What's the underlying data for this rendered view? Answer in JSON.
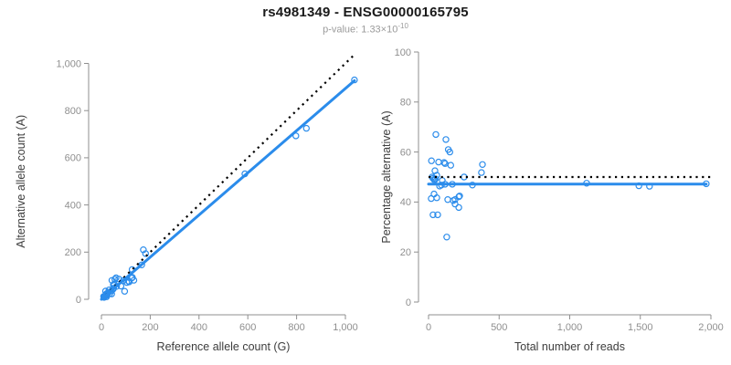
{
  "header": {
    "title": "rs4981349 - ENSG00000165795",
    "subtitle_base": "p-value: 1.33×10",
    "subtitle_exponent": "-10"
  },
  "colors": {
    "accent": "#2b8ceb",
    "identity": "#000000",
    "axis": "#8f8f8f",
    "tick_label": "#8f8f8f",
    "axis_title": "#3d3d3d",
    "title": "#1a1a1a",
    "subtitle": "#9b9b9b"
  },
  "chart_data": [
    {
      "type": "scatter",
      "title": "",
      "xlabel": "Reference allele count (G)",
      "ylabel": "Alternative allele count (A)",
      "xlim": [
        0,
        1000
      ],
      "ylim": [
        0,
        1000
      ],
      "grid": false,
      "legend": null,
      "xticks": {
        "values": [
          0,
          200,
          400,
          600,
          800,
          1000
        ],
        "labels": [
          "0",
          "200",
          "400",
          "600",
          "800",
          "1,000"
        ]
      },
      "yticks": {
        "values": [
          0,
          200,
          400,
          600,
          800,
          1000
        ],
        "labels": [
          "0",
          "200",
          "400",
          "600",
          "800",
          "1,000"
        ]
      },
      "points": [
        [
          17,
          35
        ],
        [
          43,
          80
        ],
        [
          55,
          85
        ],
        [
          60,
          91
        ],
        [
          9,
          12
        ],
        [
          31,
          40
        ],
        [
          49,
          61
        ],
        [
          52,
          65
        ],
        [
          71,
          86
        ],
        [
          172,
          210
        ],
        [
          181,
          194
        ],
        [
          21,
          24
        ],
        [
          29,
          29
        ],
        [
          13,
          13
        ],
        [
          16,
          16
        ],
        [
          19,
          19
        ],
        [
          23,
          21
        ],
        [
          25,
          25
        ],
        [
          126,
          126
        ],
        [
          50,
          47
        ],
        [
          62,
          55
        ],
        [
          42,
          36
        ],
        [
          48,
          43
        ],
        [
          165,
          146
        ],
        [
          89,
          79
        ],
        [
          22,
          17
        ],
        [
          34,
          24
        ],
        [
          11,
          8
        ],
        [
          80,
          56
        ],
        [
          104,
          71
        ],
        [
          111,
          77
        ],
        [
          124,
          90
        ],
        [
          127,
          93
        ],
        [
          114,
          74
        ],
        [
          133,
          81
        ],
        [
          21,
          11
        ],
        [
          42,
          23
        ],
        [
          95,
          34
        ],
        [
          588,
          532
        ],
        [
          797,
          693
        ],
        [
          840,
          725
        ],
        [
          1037,
          930
        ]
      ],
      "lines": [
        {
          "name": "identity-line",
          "style": "dotted",
          "color": "#000000",
          "x1": 0,
          "y1": 0,
          "x2": 1042,
          "y2": 1042
        },
        {
          "name": "fit-line",
          "style": "solid",
          "color": "#2b8ceb",
          "x1": 0,
          "y1": 0,
          "x2": 1037,
          "y2": 927
        }
      ]
    },
    {
      "type": "scatter",
      "title": "",
      "xlabel": "Total number of reads",
      "ylabel": "Percentage alternative (A)",
      "xlim": [
        0,
        2000
      ],
      "ylim": [
        0,
        100
      ],
      "grid": false,
      "legend": null,
      "xticks": {
        "values": [
          0,
          500,
          1000,
          1500,
          2000
        ],
        "labels": [
          "0",
          "500",
          "1,000",
          "1,500",
          "2,000"
        ]
      },
      "yticks": {
        "values": [
          0,
          20,
          40,
          60,
          80,
          100
        ],
        "labels": [
          "0",
          "20",
          "40",
          "60",
          "80",
          "100"
        ]
      },
      "points": [
        [
          52,
          67
        ],
        [
          123,
          65
        ],
        [
          140,
          61
        ],
        [
          151,
          60
        ],
        [
          21,
          56.5
        ],
        [
          71,
          56
        ],
        [
          110,
          55.8
        ],
        [
          117,
          55.4
        ],
        [
          157,
          54.7
        ],
        [
          382,
          55
        ],
        [
          375,
          51.8
        ],
        [
          45,
          52.5
        ],
        [
          58,
          50.7
        ],
        [
          26,
          50
        ],
        [
          32,
          49.5
        ],
        [
          38,
          49
        ],
        [
          44,
          48.8
        ],
        [
          50,
          49.3
        ],
        [
          252,
          50
        ],
        [
          97,
          48.6
        ],
        [
          117,
          47.1
        ],
        [
          78,
          46.4
        ],
        [
          91,
          46.8
        ],
        [
          311,
          46.8
        ],
        [
          168,
          47.1
        ],
        [
          39,
          43.2
        ],
        [
          58,
          41.7
        ],
        [
          19,
          41.4
        ],
        [
          136,
          41
        ],
        [
          175,
          40.6
        ],
        [
          188,
          41
        ],
        [
          214,
          42.1
        ],
        [
          220,
          42.4
        ],
        [
          188,
          39.2
        ],
        [
          214,
          37.8
        ],
        [
          32,
          34.9
        ],
        [
          65,
          34.9
        ],
        [
          129,
          26
        ],
        [
          1120,
          47.5
        ],
        [
          1490,
          46.5
        ],
        [
          1565,
          46.3
        ],
        [
          1967,
          47.3
        ]
      ],
      "lines": [
        {
          "name": "expected-line",
          "style": "dotted",
          "color": "#000000",
          "x1": 0,
          "y1": 50,
          "x2": 2000,
          "y2": 50
        },
        {
          "name": "fit-line",
          "style": "solid",
          "color": "#2b8ceb",
          "x1": 0,
          "y1": 47.2,
          "x2": 1967,
          "y2": 47.2
        }
      ]
    }
  ]
}
